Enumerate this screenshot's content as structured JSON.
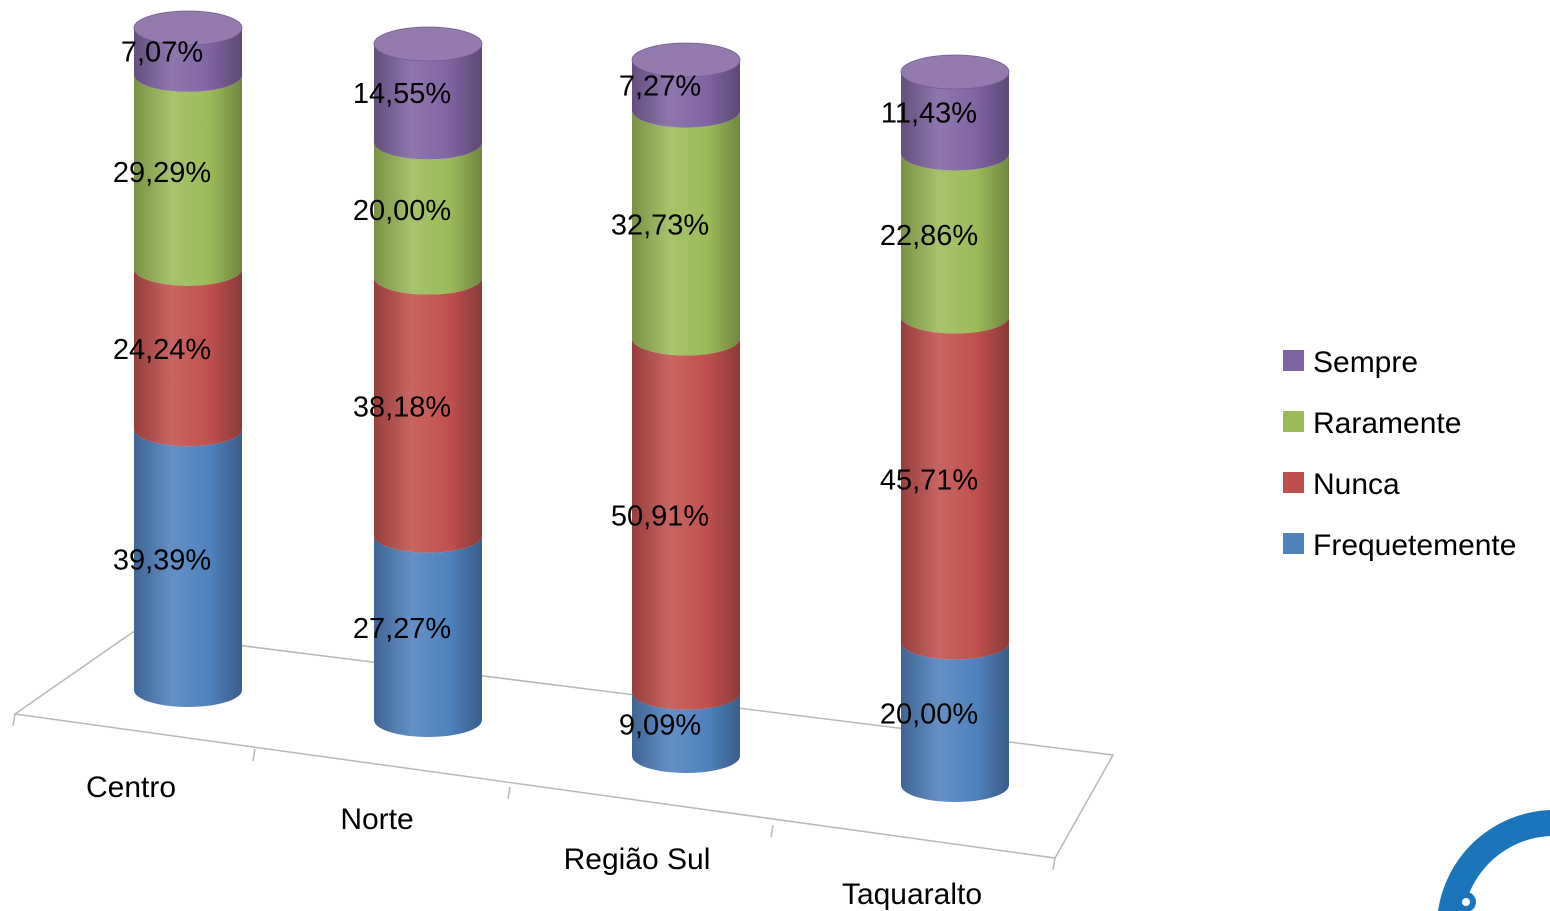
{
  "chart_data": {
    "type": "bar",
    "stacked": true,
    "style": "3d-cylinder",
    "title": "",
    "xlabel": "",
    "ylabel": "",
    "ylim": [
      0,
      100
    ],
    "categories": [
      "Centro",
      "Norte",
      "Região Sul",
      "Taquaralto"
    ],
    "series": [
      {
        "name": "Frequetemente",
        "color": "#4f81bd",
        "values": [
          39.39,
          27.27,
          9.09,
          20.0
        ],
        "labels": [
          "39,39%",
          "27,27%",
          "9,09%",
          "20,00%"
        ]
      },
      {
        "name": "Nunca",
        "color": "#c0504d",
        "values": [
          24.24,
          38.18,
          50.91,
          45.71
        ],
        "labels": [
          "24,24%",
          "38,18%",
          "50,91%",
          "45,71%"
        ]
      },
      {
        "name": "Raramente",
        "color": "#9bbb59",
        "values": [
          29.29,
          20.0,
          32.73,
          22.86
        ],
        "labels": [
          "29,29%",
          "20,00%",
          "32,73%",
          "22,86%"
        ]
      },
      {
        "name": "Sempre",
        "color": "#8064a2",
        "values": [
          7.07,
          14.55,
          7.27,
          11.43
        ],
        "labels": [
          "7,07%",
          "14,55%",
          "7,27%",
          "11,43%"
        ]
      }
    ],
    "legend": {
      "position": "right",
      "order": [
        "Sempre",
        "Raramente",
        "Nunca",
        "Frequetemente"
      ]
    },
    "grid": false
  },
  "decor": {
    "logo_color": "#1b75bb"
  }
}
